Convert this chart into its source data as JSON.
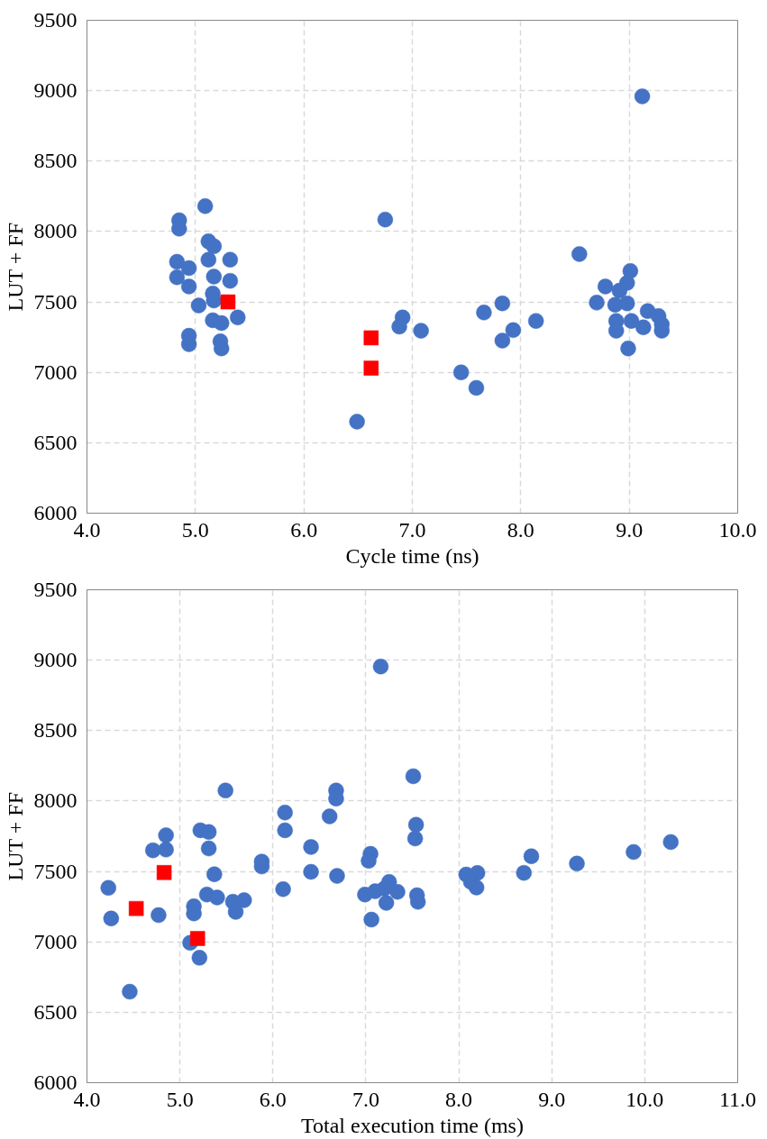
{
  "chart_data": [
    {
      "type": "scatter",
      "xlabel": "Cycle time (ns)",
      "ylabel": "LUT + FF",
      "xlim": [
        4.0,
        10.0
      ],
      "ylim": [
        6000,
        9500
      ],
      "xticks": [
        {
          "value": 4,
          "label": "4.0"
        },
        {
          "value": 5,
          "label": "5.0"
        },
        {
          "value": 6,
          "label": "6.0"
        },
        {
          "value": 7,
          "label": "7.0"
        },
        {
          "value": 8,
          "label": "8.0"
        },
        {
          "value": 9,
          "label": "9.0"
        },
        {
          "value": 10,
          "label": "10.0"
        }
      ],
      "yticks": [
        6000,
        6500,
        7000,
        7500,
        8000,
        8500,
        9000,
        9500
      ],
      "grid": true,
      "series": [
        {
          "color": "#4472c4",
          "marker": "circle",
          "x": [
            5.09,
            4.85,
            4.85,
            5.12,
            5.17,
            5.12,
            5.32,
            4.83,
            4.94,
            4.83,
            5.17,
            5.32,
            4.94,
            5.16,
            5.17,
            5.03,
            5.39,
            5.16,
            5.24,
            4.94,
            4.94,
            5.23,
            5.24,
            6.75,
            6.91,
            6.88,
            7.08,
            7.66,
            7.83,
            7.93,
            7.83,
            8.14,
            7.45,
            7.59,
            6.49,
            9.12,
            8.54,
            9.01,
            8.78,
            8.98,
            8.91,
            8.7,
            8.87,
            8.98,
            9.17,
            9.27,
            8.88,
            9.02,
            9.13,
            9.3,
            9.3,
            8.88,
            8.99
          ],
          "values": [
            8180,
            8080,
            8020,
            7930,
            7895,
            7800,
            7800,
            7785,
            7740,
            7675,
            7680,
            7650,
            7610,
            7560,
            7510,
            7475,
            7390,
            7370,
            7350,
            7260,
            7200,
            7220,
            7170,
            8085,
            7390,
            7325,
            7295,
            7425,
            7490,
            7300,
            7225,
            7365,
            7000,
            6890,
            6650,
            8960,
            7840,
            7720,
            7610,
            7635,
            7580,
            7495,
            7480,
            7490,
            7435,
            7400,
            7365,
            7365,
            7320,
            7340,
            7295,
            7295,
            7170
          ]
        },
        {
          "color": "#ff0000",
          "marker": "square",
          "x": [
            5.3,
            6.62,
            6.62
          ],
          "values": [
            7500,
            7245,
            7030
          ]
        }
      ]
    },
    {
      "type": "scatter",
      "xlabel": "Total execution time (ms)",
      "ylabel": "LUT + FF",
      "xlim": [
        4.0,
        11.0
      ],
      "ylim": [
        6000,
        9500
      ],
      "xticks": [
        {
          "value": 4,
          "label": "4.0"
        },
        {
          "value": 5,
          "label": "5.0"
        },
        {
          "value": 6,
          "label": "6.0"
        },
        {
          "value": 7,
          "label": "7.0"
        },
        {
          "value": 8,
          "label": "8.0"
        },
        {
          "value": 9,
          "label": "9.0"
        },
        {
          "value": 10,
          "label": "10.0"
        },
        {
          "value": 11,
          "label": "11.0"
        }
      ],
      "yticks": [
        6000,
        6500,
        7000,
        7500,
        8000,
        8500,
        9000,
        9500
      ],
      "grid": true,
      "series": [
        {
          "color": "#4472c4",
          "marker": "circle",
          "x": [
            5.49,
            6.13,
            6.13,
            5.22,
            5.31,
            4.85,
            4.71,
            4.85,
            5.31,
            5.88,
            5.88,
            5.37,
            4.23,
            6.11,
            5.29,
            5.4,
            5.57,
            5.69,
            5.6,
            5.15,
            5.15,
            4.77,
            4.26,
            5.11,
            5.21,
            4.46,
            7.51,
            6.68,
            6.68,
            6.61,
            7.54,
            7.53,
            6.41,
            7.05,
            7.03,
            6.41,
            6.69,
            8.08,
            8.2,
            8.13,
            8.19,
            7.25,
            7.2,
            7.34,
            6.99,
            7.1,
            7.22,
            7.55,
            7.56,
            7.06,
            8.7,
            7.16,
            8.78,
            9.27,
            9.88,
            10.28
          ],
          "values": [
            8075,
            7918,
            7792,
            7792,
            7780,
            7757,
            7650,
            7655,
            7663,
            7535,
            7570,
            7480,
            7383,
            7374,
            7336,
            7315,
            7285,
            7296,
            7213,
            7253,
            7202,
            7190,
            7166,
            6993,
            6887,
            6646,
            8176,
            8075,
            8017,
            7891,
            7832,
            7734,
            7674,
            7625,
            7575,
            7497,
            7468,
            7478,
            7489,
            7426,
            7386,
            7426,
            7379,
            7355,
            7336,
            7359,
            7277,
            7331,
            7284,
            7158,
            7490,
            8955,
            7608,
            7556,
            7638,
            7709
          ]
        },
        {
          "color": "#ff0000",
          "marker": "square",
          "x": [
            4.83,
            4.53,
            5.19
          ],
          "values": [
            7492,
            7237,
            7024
          ]
        }
      ]
    }
  ]
}
